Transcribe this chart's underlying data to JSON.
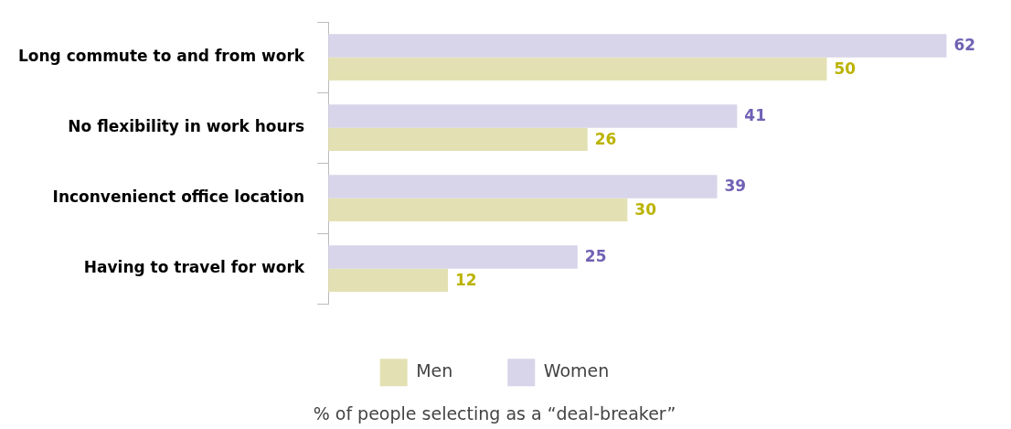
{
  "chart_data": {
    "type": "bar",
    "orientation": "horizontal",
    "annotations": [
      "% of people selecting as a “deal-breaker”"
    ],
    "categories": [
      "Long commute to and from work",
      "No flexibility in work hours",
      "Inconvenienct office location",
      "Having to travel for work"
    ],
    "series": [
      {
        "name": "Women",
        "color": "#d8d4e9",
        "values": [
          62,
          41,
          39,
          25
        ]
      },
      {
        "name": "Men",
        "color": "#e3e1b3",
        "values": [
          50,
          26,
          30,
          12
        ]
      }
    ],
    "data_labels": true,
    "legend": "bottom"
  }
}
